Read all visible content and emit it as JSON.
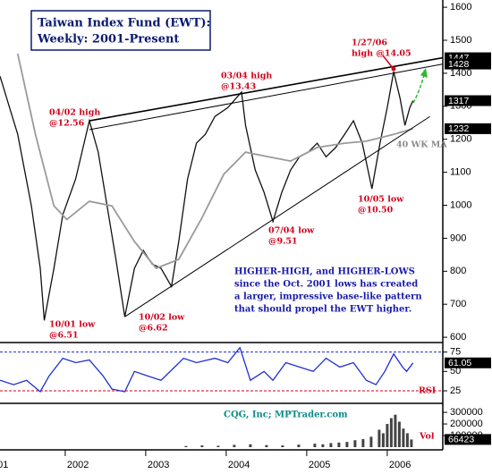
{
  "chart_data": [
    {
      "type": "line",
      "title": "Taiwan Index Fund (EWT):",
      "subtitle": "Weekly: 2001-Present",
      "xlim": [
        2001.19,
        2006.69
      ],
      "xticks": [
        2001,
        2002,
        2003,
        2004,
        2005,
        2006
      ],
      "ylim": [
        584,
        1622
      ],
      "yticks": [
        600,
        700,
        800,
        900,
        1000,
        1100,
        1200,
        1300,
        1400,
        1500,
        1600
      ],
      "series": [
        {
          "color": "#111111",
          "x": [
            2001.19,
            2001.41,
            2001.58,
            2001.69,
            2001.74,
            2001.86,
            2001.97,
            2002.13,
            2002.3,
            2002.41,
            2002.52,
            2002.63,
            2002.74,
            2002.86,
            2002.97,
            2003.08,
            2003.19,
            2003.32,
            2003.41,
            2003.52,
            2003.63,
            2003.74,
            2003.86,
            2004.02,
            2004.19,
            2004.24,
            2004.36,
            2004.47,
            2004.58,
            2004.69,
            2004.8,
            2004.91,
            2005.02,
            2005.13,
            2005.24,
            2005.36,
            2005.47,
            2005.58,
            2005.69,
            2005.81,
            2005.91,
            2006.0,
            2006.08,
            2006.16,
            2006.22,
            2006.28,
            2006.32
          ],
          "values": [
            1391,
            1215,
            998,
            809,
            651,
            809,
            971,
            1080,
            1256,
            1161,
            998,
            836,
            662,
            809,
            863,
            822,
            809,
            754,
            890,
            1080,
            1188,
            1215,
            1269,
            1296,
            1343,
            1242,
            1107,
            1039,
            951,
            1039,
            1107,
            1147,
            1161,
            1188,
            1147,
            1175,
            1215,
            1256,
            1188,
            1050,
            1188,
            1296,
            1405,
            1323,
            1242,
            1296,
            1317
          ]
        },
        {
          "name": "40 WK MA",
          "color": "#9a9a9a",
          "x": [
            2001.41,
            2001.63,
            2001.86,
            2002.02,
            2002.3,
            2002.58,
            2002.86,
            2003.13,
            2003.41,
            2003.69,
            2003.97,
            2004.24,
            2004.52,
            2004.8,
            2005.13,
            2005.47,
            2005.74,
            2006.08,
            2006.32
          ],
          "values": [
            1459,
            1215,
            998,
            957,
            1012,
            998,
            890,
            809,
            836,
            958,
            1094,
            1161,
            1147,
            1134,
            1175,
            1188,
            1194,
            1215,
            1232
          ]
        }
      ],
      "trendlines": [
        {
          "x": [
            2002.3,
            2006.69
          ],
          "values": [
            1256,
            1447
          ]
        },
        {
          "x": [
            2002.3,
            2006.69
          ],
          "values": [
            1229,
            1428
          ]
        },
        {
          "x": [
            2002.74,
            2006.53
          ],
          "values": [
            662,
            1269
          ]
        }
      ],
      "annotations": [
        {
          "lines": [
            "04/02 high",
            "@12.56"
          ]
        },
        {
          "lines": [
            "03/04 high",
            "@13.43"
          ]
        },
        {
          "lines": [
            "1/27/06",
            "high @14.05"
          ]
        },
        {
          "lines": [
            "10/01 low",
            "@6.51"
          ]
        },
        {
          "lines": [
            "10/02 low",
            "@6.62"
          ]
        },
        {
          "lines": [
            "07/04 low",
            "@9.51"
          ]
        },
        {
          "lines": [
            "10/05 low",
            "@10.50"
          ]
        }
      ],
      "note": [
        "HIGHER-HIGH, and HIGHER-LOWS",
        "since the Oct. 2001 lows has created",
        "a larger, impressive base-like pattern",
        "that should propel the EWT higher."
      ]
    },
    {
      "type": "line",
      "xlim": [
        2001.19,
        2006.69
      ],
      "ylim": [
        10,
        85
      ],
      "yticks": [
        25,
        50,
        75
      ],
      "series": [
        {
          "name": "RSI",
          "color": "#1f2fd6",
          "x": [
            2001.19,
            2001.36,
            2001.52,
            2001.69,
            2001.8,
            2001.97,
            2002.13,
            2002.3,
            2002.47,
            2002.58,
            2002.74,
            2002.86,
            2003.02,
            2003.19,
            2003.36,
            2003.47,
            2003.63,
            2003.86,
            2004.02,
            2004.17,
            2004.3,
            2004.47,
            2004.58,
            2004.74,
            2004.91,
            2005.08,
            2005.24,
            2005.41,
            2005.58,
            2005.74,
            2005.86,
            2005.97,
            2006.08,
            2006.19,
            2006.24,
            2006.32
          ],
          "values": [
            38.6,
            33,
            38.6,
            23.9,
            44.3,
            67,
            61.4,
            64.8,
            44.3,
            27.3,
            23.9,
            50,
            44.3,
            38.6,
            55.7,
            67,
            61.4,
            67,
            61.4,
            80.7,
            38.6,
            50,
            38.6,
            61.4,
            55.7,
            50,
            67,
            55.7,
            61.4,
            38.6,
            33,
            50,
            72.7,
            55.7,
            50,
            61.05
          ]
        }
      ]
    },
    {
      "type": "bar",
      "xlim": [
        2001.19,
        2006.69
      ],
      "ylim": [
        0,
        370000
      ],
      "yticks": [
        100000,
        200000,
        300000
      ],
      "source": "CQG, Inc; MPTrader.com",
      "series": [
        {
          "name": "Vol",
          "color": "#444444",
          "x": [
            2003.5,
            2003.7,
            2003.9,
            2004.1,
            2004.3,
            2004.5,
            2004.7,
            2004.9,
            2005.1,
            2005.2,
            2005.3,
            2005.4,
            2005.5,
            2005.6,
            2005.7,
            2005.8,
            2005.9,
            2005.95,
            2006.0,
            2006.05,
            2006.1,
            2006.15,
            2006.2,
            2006.25,
            2006.3
          ],
          "values": [
            10000,
            15000,
            12000,
            20000,
            25000,
            18000,
            15000,
            22000,
            30000,
            25000,
            35000,
            40000,
            45000,
            60000,
            70000,
            90000,
            150000,
            120000,
            200000,
            250000,
            280000,
            220000,
            160000,
            120000,
            66423
          ]
        }
      ]
    }
  ]
}
